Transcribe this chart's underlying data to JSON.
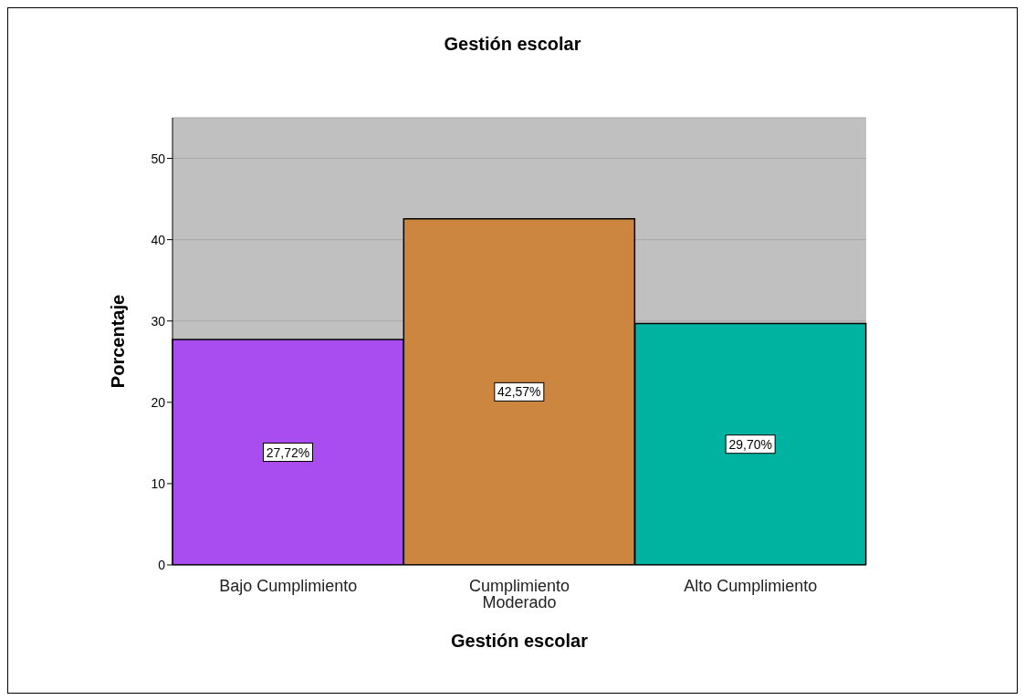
{
  "chart_data": {
    "type": "bar",
    "title": "Gestión escolar",
    "xlabel": "Gestión escolar",
    "ylabel": "Porcentaje",
    "categories": [
      "Bajo Cumplimiento",
      "Cumplimiento Moderado",
      "Alto Cumplimiento"
    ],
    "values": [
      27.72,
      42.57,
      29.7
    ],
    "value_labels": [
      "27,72%",
      "42,57%",
      "29,70%"
    ],
    "colors": [
      "#a94cf0",
      "#cc8640",
      "#00b3a0"
    ],
    "ylim": [
      0,
      55
    ],
    "yticks": [
      0,
      10,
      20,
      30,
      40,
      50
    ],
    "grid": "y"
  }
}
